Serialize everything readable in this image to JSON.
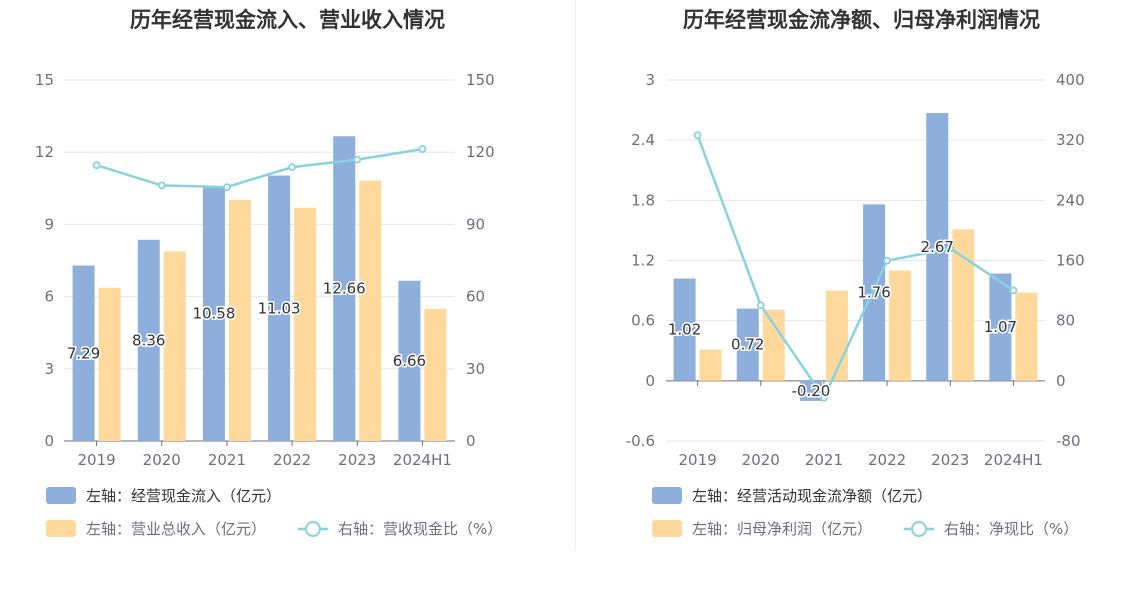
{
  "chart_data": [
    {
      "type": "bar",
      "title": "历年经营现金流入、营业收入情况",
      "categories": [
        "2019",
        "2020",
        "2021",
        "2022",
        "2023",
        "2024H1"
      ],
      "y_left_ticks": [
        "0",
        "3",
        "6",
        "9",
        "12",
        "15"
      ],
      "y_right_ticks": [
        "0",
        "30",
        "60",
        "90",
        "120",
        "150"
      ],
      "ylim_left": [
        0,
        15
      ],
      "ylim_right": [
        0,
        150
      ],
      "series": [
        {
          "name": "左轴：经营现金流入（亿元）",
          "kind": "bar",
          "axis": "left",
          "color": "#8eaedb",
          "values": [
            7.29,
            8.36,
            10.58,
            11.03,
            12.66,
            6.66
          ],
          "labels": [
            "7.29",
            "8.36",
            "10.58",
            "11.03",
            "12.66",
            "6.66"
          ]
        },
        {
          "name": "左轴：营业总收入（亿元）",
          "kind": "bar",
          "axis": "left",
          "color": "#ffd89c",
          "values": [
            6.37,
            7.88,
            10.02,
            9.69,
            10.82,
            5.49
          ]
        },
        {
          "name": "右轴：营收现金比（%）",
          "kind": "line",
          "axis": "right",
          "color": "#88d3df",
          "values": [
            114.6,
            106.2,
            105.5,
            113.8,
            116.9,
            121.3
          ]
        }
      ],
      "grid": true,
      "legend_position": "bottom-left"
    },
    {
      "type": "bar",
      "title": "历年经营现金流净额、归母净利润情况",
      "categories": [
        "2019",
        "2020",
        "2021",
        "2022",
        "2023",
        "2024H1"
      ],
      "y_left_ticks": [
        "-0.6",
        "0",
        "0.6",
        "1.2",
        "1.8",
        "2.4",
        "3"
      ],
      "y_right_ticks": [
        "-80",
        "0",
        "80",
        "160",
        "240",
        "320",
        "400"
      ],
      "ylim_left": [
        -0.6,
        3
      ],
      "ylim_right": [
        -80,
        400
      ],
      "series": [
        {
          "name": "左轴：经营活动现金流净额（亿元）",
          "kind": "bar",
          "axis": "left",
          "color": "#8eaedb",
          "values": [
            1.02,
            0.72,
            -0.2,
            1.76,
            2.67,
            1.07
          ],
          "labels": [
            "1.02",
            "0.72",
            "-0.20",
            "1.76",
            "2.67",
            "1.07"
          ]
        },
        {
          "name": "左轴：归母净利润（亿元）",
          "kind": "bar",
          "axis": "left",
          "color": "#ffd89c",
          "values": [
            0.31,
            0.71,
            0.9,
            1.1,
            1.51,
            0.88
          ]
        },
        {
          "name": "右轴：净现比（%）",
          "kind": "line",
          "axis": "right",
          "color": "#88d3df",
          "values": [
            326.5,
            100.5,
            -22.5,
            159.8,
            176.0,
            120.3
          ]
        }
      ],
      "grid": true,
      "legend_position": "bottom-left"
    }
  ]
}
